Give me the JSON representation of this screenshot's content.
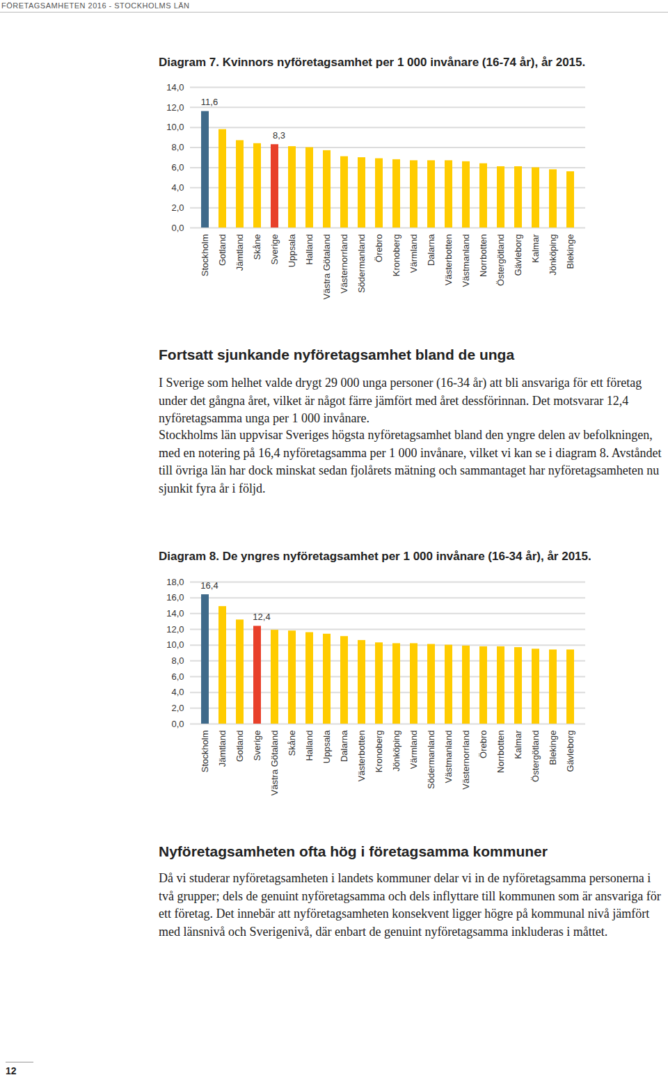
{
  "header": "FÖRETAGSAMHETEN 2016 - STOCKHOLMS LÄN",
  "chart_data": [
    {
      "type": "bar",
      "title": "Diagram 7. Kvinnors nyföretagsamhet per 1 000 invånare (16-74 år), år 2015.",
      "categories": [
        "Stockholm",
        "Gotland",
        "Jämtland",
        "Skåne",
        "Sverige",
        "Uppsala",
        "Halland",
        "Västra Götaland",
        "Västernorrland",
        "Södermanland",
        "Örebro",
        "Kronoberg",
        "Värmland",
        "Dalarna",
        "Västerbotten",
        "Västmanland",
        "Norrbotten",
        "Östergötland",
        "Gävleborg",
        "Kalmar",
        "Jönköping",
        "Blekinge"
      ],
      "values": [
        11.6,
        9.8,
        8.7,
        8.4,
        8.3,
        8.1,
        8.0,
        7.7,
        7.1,
        7.0,
        6.9,
        6.8,
        6.7,
        6.7,
        6.7,
        6.6,
        6.4,
        6.1,
        6.1,
        6.0,
        5.8,
        5.6
      ],
      "value_labels": [
        "11,6",
        null,
        null,
        null,
        "8,3",
        null,
        null,
        null,
        null,
        null,
        null,
        null,
        null,
        null,
        null,
        null,
        null,
        null,
        null,
        null,
        null,
        null
      ],
      "data_labels": true,
      "colors": [
        "#3f6a8a",
        "#ffcc00",
        "#ffcc00",
        "#ffcc00",
        "#e8402a",
        "#ffcc00",
        "#ffcc00",
        "#ffcc00",
        "#ffcc00",
        "#ffcc00",
        "#ffcc00",
        "#ffcc00",
        "#ffcc00",
        "#ffcc00",
        "#ffcc00",
        "#ffcc00",
        "#ffcc00",
        "#ffcc00",
        "#ffcc00",
        "#ffcc00",
        "#ffcc00",
        "#ffcc00"
      ],
      "ylim": [
        0,
        14
      ],
      "yticks": [
        {
          "value": 0,
          "label": "0,0"
        },
        {
          "value": 2,
          "label": "2,0"
        },
        {
          "value": 4,
          "label": "4,0"
        },
        {
          "value": 6,
          "label": "6,0"
        },
        {
          "value": 8,
          "label": "8,0"
        },
        {
          "value": 10,
          "label": "10,0"
        },
        {
          "value": 12,
          "label": "12,0"
        },
        {
          "value": 14,
          "label": "14,0"
        }
      ],
      "grid": true
    },
    {
      "type": "bar",
      "title": "Diagram 8. De yngres nyföretagsamhet per 1 000 invånare (16-34 år), år 2015.",
      "categories": [
        "Stockholm",
        "Jämtland",
        "Gotland",
        "Sverige",
        "Västra Götaland",
        "Skåne",
        "Halland",
        "Uppsala",
        "Dalarna",
        "Västerbotten",
        "Kronoberg",
        "Jönköping",
        "Värmland",
        "Södermanland",
        "Västmanland",
        "Västernorrland",
        "Örebro",
        "Norrbotten",
        "Kalmar",
        "Östergötland",
        "Blekinge",
        "Gävleborg"
      ],
      "values": [
        16.4,
        14.9,
        13.2,
        12.4,
        11.9,
        11.8,
        11.6,
        11.4,
        11.1,
        10.6,
        10.3,
        10.2,
        10.2,
        10.1,
        10.0,
        9.9,
        9.8,
        9.8,
        9.7,
        9.5,
        9.4,
        9.4
      ],
      "value_labels": [
        "16,4",
        null,
        null,
        "12,4",
        null,
        null,
        null,
        null,
        null,
        null,
        null,
        null,
        null,
        null,
        null,
        null,
        null,
        null,
        null,
        null,
        null,
        null
      ],
      "data_labels": true,
      "colors": [
        "#3f6a8a",
        "#ffcc00",
        "#ffcc00",
        "#e8402a",
        "#ffcc00",
        "#ffcc00",
        "#ffcc00",
        "#ffcc00",
        "#ffcc00",
        "#ffcc00",
        "#ffcc00",
        "#ffcc00",
        "#ffcc00",
        "#ffcc00",
        "#ffcc00",
        "#ffcc00",
        "#ffcc00",
        "#ffcc00",
        "#ffcc00",
        "#ffcc00",
        "#ffcc00",
        "#ffcc00"
      ],
      "ylim": [
        0,
        18
      ],
      "yticks": [
        {
          "value": 0,
          "label": "0,0"
        },
        {
          "value": 2,
          "label": "2,0"
        },
        {
          "value": 4,
          "label": "4,0"
        },
        {
          "value": 6,
          "label": "6,0"
        },
        {
          "value": 8,
          "label": "8,0"
        },
        {
          "value": 10,
          "label": "10,0"
        },
        {
          "value": 12,
          "label": "12,0"
        },
        {
          "value": 14,
          "label": "14,0"
        },
        {
          "value": 16,
          "label": "16,0"
        },
        {
          "value": 18,
          "label": "18,0"
        }
      ],
      "grid": true
    }
  ],
  "sections": [
    {
      "heading": "Fortsatt sjunkande nyföretagsamhet bland de unga",
      "paragraphs": [
        "I Sverige som helhet valde drygt 29 000 unga personer (16-34 år) att bli ansvariga för ett företag under det gångna året, vilket är något färre jämfört med året dessförinnan. Det motsvarar 12,4 nyföretagsamma unga per 1 000 invånare.",
        "Stockholms län uppvisar Sveriges högsta nyföretagsamhet bland den yngre delen av befolkningen, med en notering på 16,4 nyföretagsamma per 1 000 invånare, vilket vi kan se i diagram 8. Avståndet till övriga län har dock minskat sedan fjolårets mätning och sammantaget har nyföretagsamheten nu sjunkit fyra år i följd."
      ]
    },
    {
      "heading": "Nyföretagsamheten ofta hög i företagsamma kommuner",
      "paragraphs": [
        "Då vi studerar nyföretagsamheten i landets kommuner delar vi in de nyföretagsamma personerna i två grupper; dels de genuint nyföretagsamma och dels inflyttare till kommunen som är ansvariga för ett företag. Det innebär att nyföretagsamheten konsekvent ligger högre på kommunal nivå jämfört med länsnivå och Sverigenivå, där enbart de genuint nyföretagsamma inkluderas i måttet."
      ]
    }
  ],
  "page_number": "12"
}
